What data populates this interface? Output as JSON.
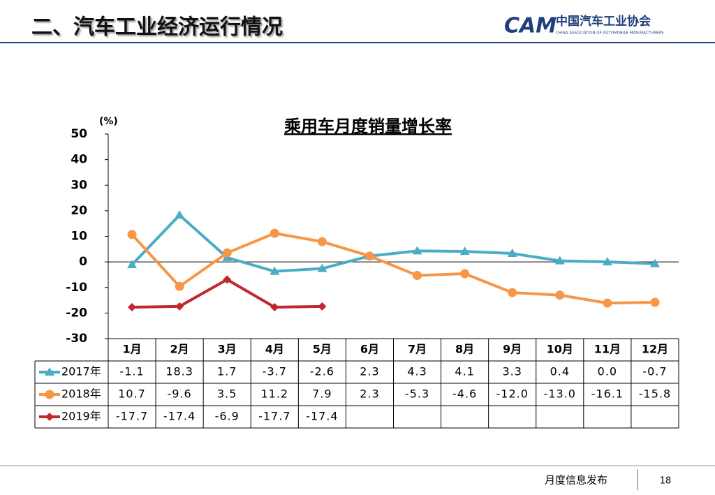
{
  "header": {
    "title": "二、汽车工业经济运行情况",
    "logo_mark": "CAM",
    "logo_name": "中国汽车工业协会",
    "logo_subtitle": "CHINA ASSOCIATION OF AUTOMOBILE MANUFACTURERS"
  },
  "footer": {
    "text": "月度信息发布",
    "page": "18"
  },
  "chart_data": {
    "type": "line",
    "title": "乘用车月度销量增长率",
    "y_unit": "(%)",
    "categories": [
      "1月",
      "2月",
      "3月",
      "4月",
      "5月",
      "6月",
      "7月",
      "8月",
      "9月",
      "10月",
      "11月",
      "12月"
    ],
    "ylim": [
      -30,
      50
    ],
    "yticks": [
      -30,
      -20,
      -10,
      0,
      10,
      20,
      30,
      40,
      50
    ],
    "series": [
      {
        "name": "2017年",
        "color": "#4bacc6",
        "marker": "triangle",
        "values": [
          -1.1,
          18.3,
          1.7,
          -3.7,
          -2.6,
          2.3,
          4.3,
          4.1,
          3.3,
          0.4,
          0,
          -0.7
        ],
        "value_labels": [
          "-1.1",
          "18.3",
          "1.7",
          "-3.7",
          "-2.6",
          "2.3",
          "4.3",
          "4.1",
          "3.3",
          "0.4",
          "0.0",
          "-0.7"
        ]
      },
      {
        "name": "2018年",
        "color": "#f79646",
        "marker": "circle",
        "values": [
          10.7,
          -9.6,
          3.5,
          11.2,
          7.9,
          2.3,
          -5.3,
          -4.6,
          -12,
          -13,
          -16.1,
          -15.8
        ],
        "value_labels": [
          "10.7",
          "-9.6",
          "3.5",
          "11.2",
          "7.9",
          "2.3",
          "-5.3",
          "-4.6",
          "-12.0",
          "-13.0",
          "-16.1",
          "-15.8"
        ]
      },
      {
        "name": "2019年",
        "color": "#c0282d",
        "marker": "diamond",
        "values": [
          -17.7,
          -17.4,
          -6.9,
          -17.7,
          -17.4,
          null,
          null,
          null,
          null,
          null,
          null,
          null
        ],
        "value_labels": [
          "-17.7",
          "-17.4",
          "-6.9",
          "-17.7",
          "-17.4",
          null,
          null,
          null,
          null,
          null,
          null,
          null
        ]
      }
    ]
  }
}
